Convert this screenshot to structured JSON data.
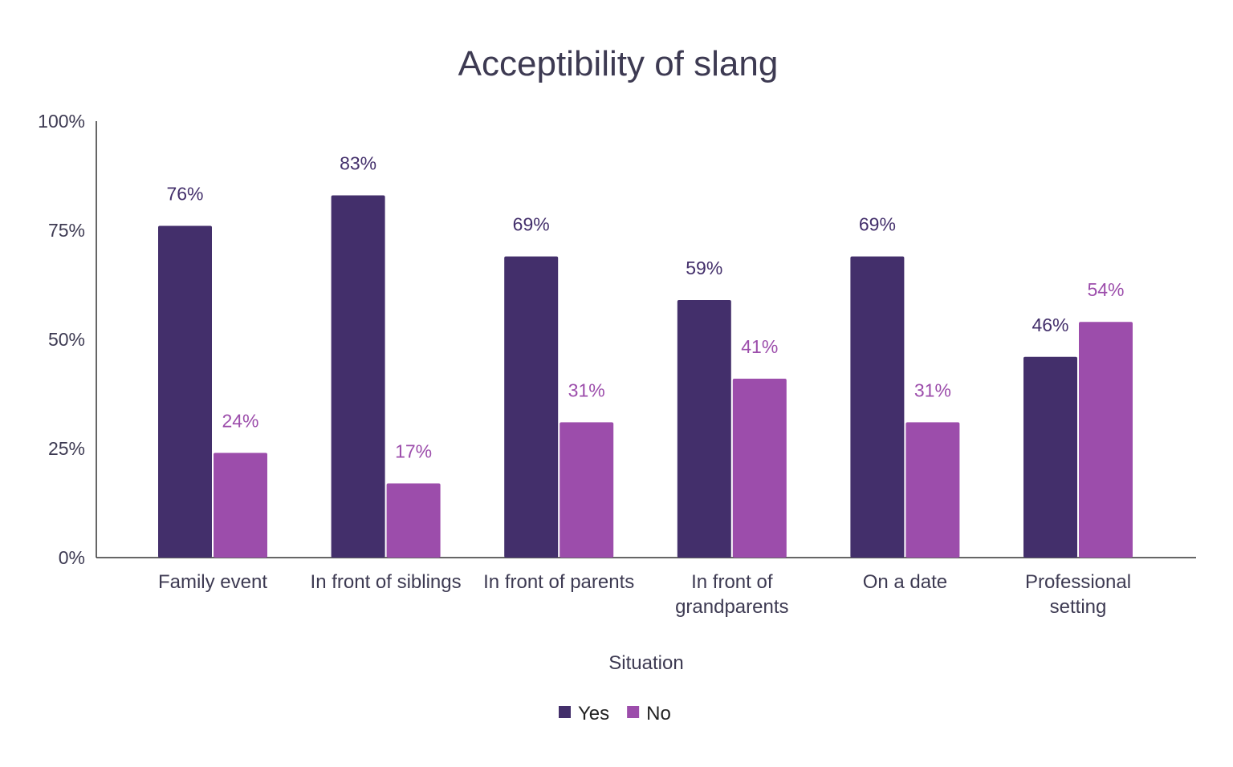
{
  "chart_data": {
    "type": "bar",
    "title": "Acceptibility of slang",
    "xlabel": "Situation",
    "ylabel": "",
    "ylim": [
      0,
      100
    ],
    "yticks": [
      "0%",
      "25%",
      "50%",
      "75%",
      "100%"
    ],
    "grid": false,
    "legend_placement": "bottom",
    "categories": [
      [
        "Family event"
      ],
      [
        "In front of siblings"
      ],
      [
        "In front of parents"
      ],
      [
        "In front of",
        "grandparents"
      ],
      [
        "On a date"
      ],
      [
        "Professional",
        "setting"
      ]
    ],
    "series": [
      {
        "name": "Yes",
        "color": "#432f6b",
        "values": [
          76,
          83,
          69,
          59,
          69,
          46
        ],
        "labels": [
          "76%",
          "83%",
          "69%",
          "59%",
          "69%",
          "46%"
        ]
      },
      {
        "name": "No",
        "color": "#9c4dab",
        "values": [
          24,
          17,
          31,
          41,
          31,
          54
        ],
        "labels": [
          "24%",
          "17%",
          "31%",
          "41%",
          "31%",
          "54%"
        ]
      }
    ],
    "text_color": "#3d3a52"
  }
}
